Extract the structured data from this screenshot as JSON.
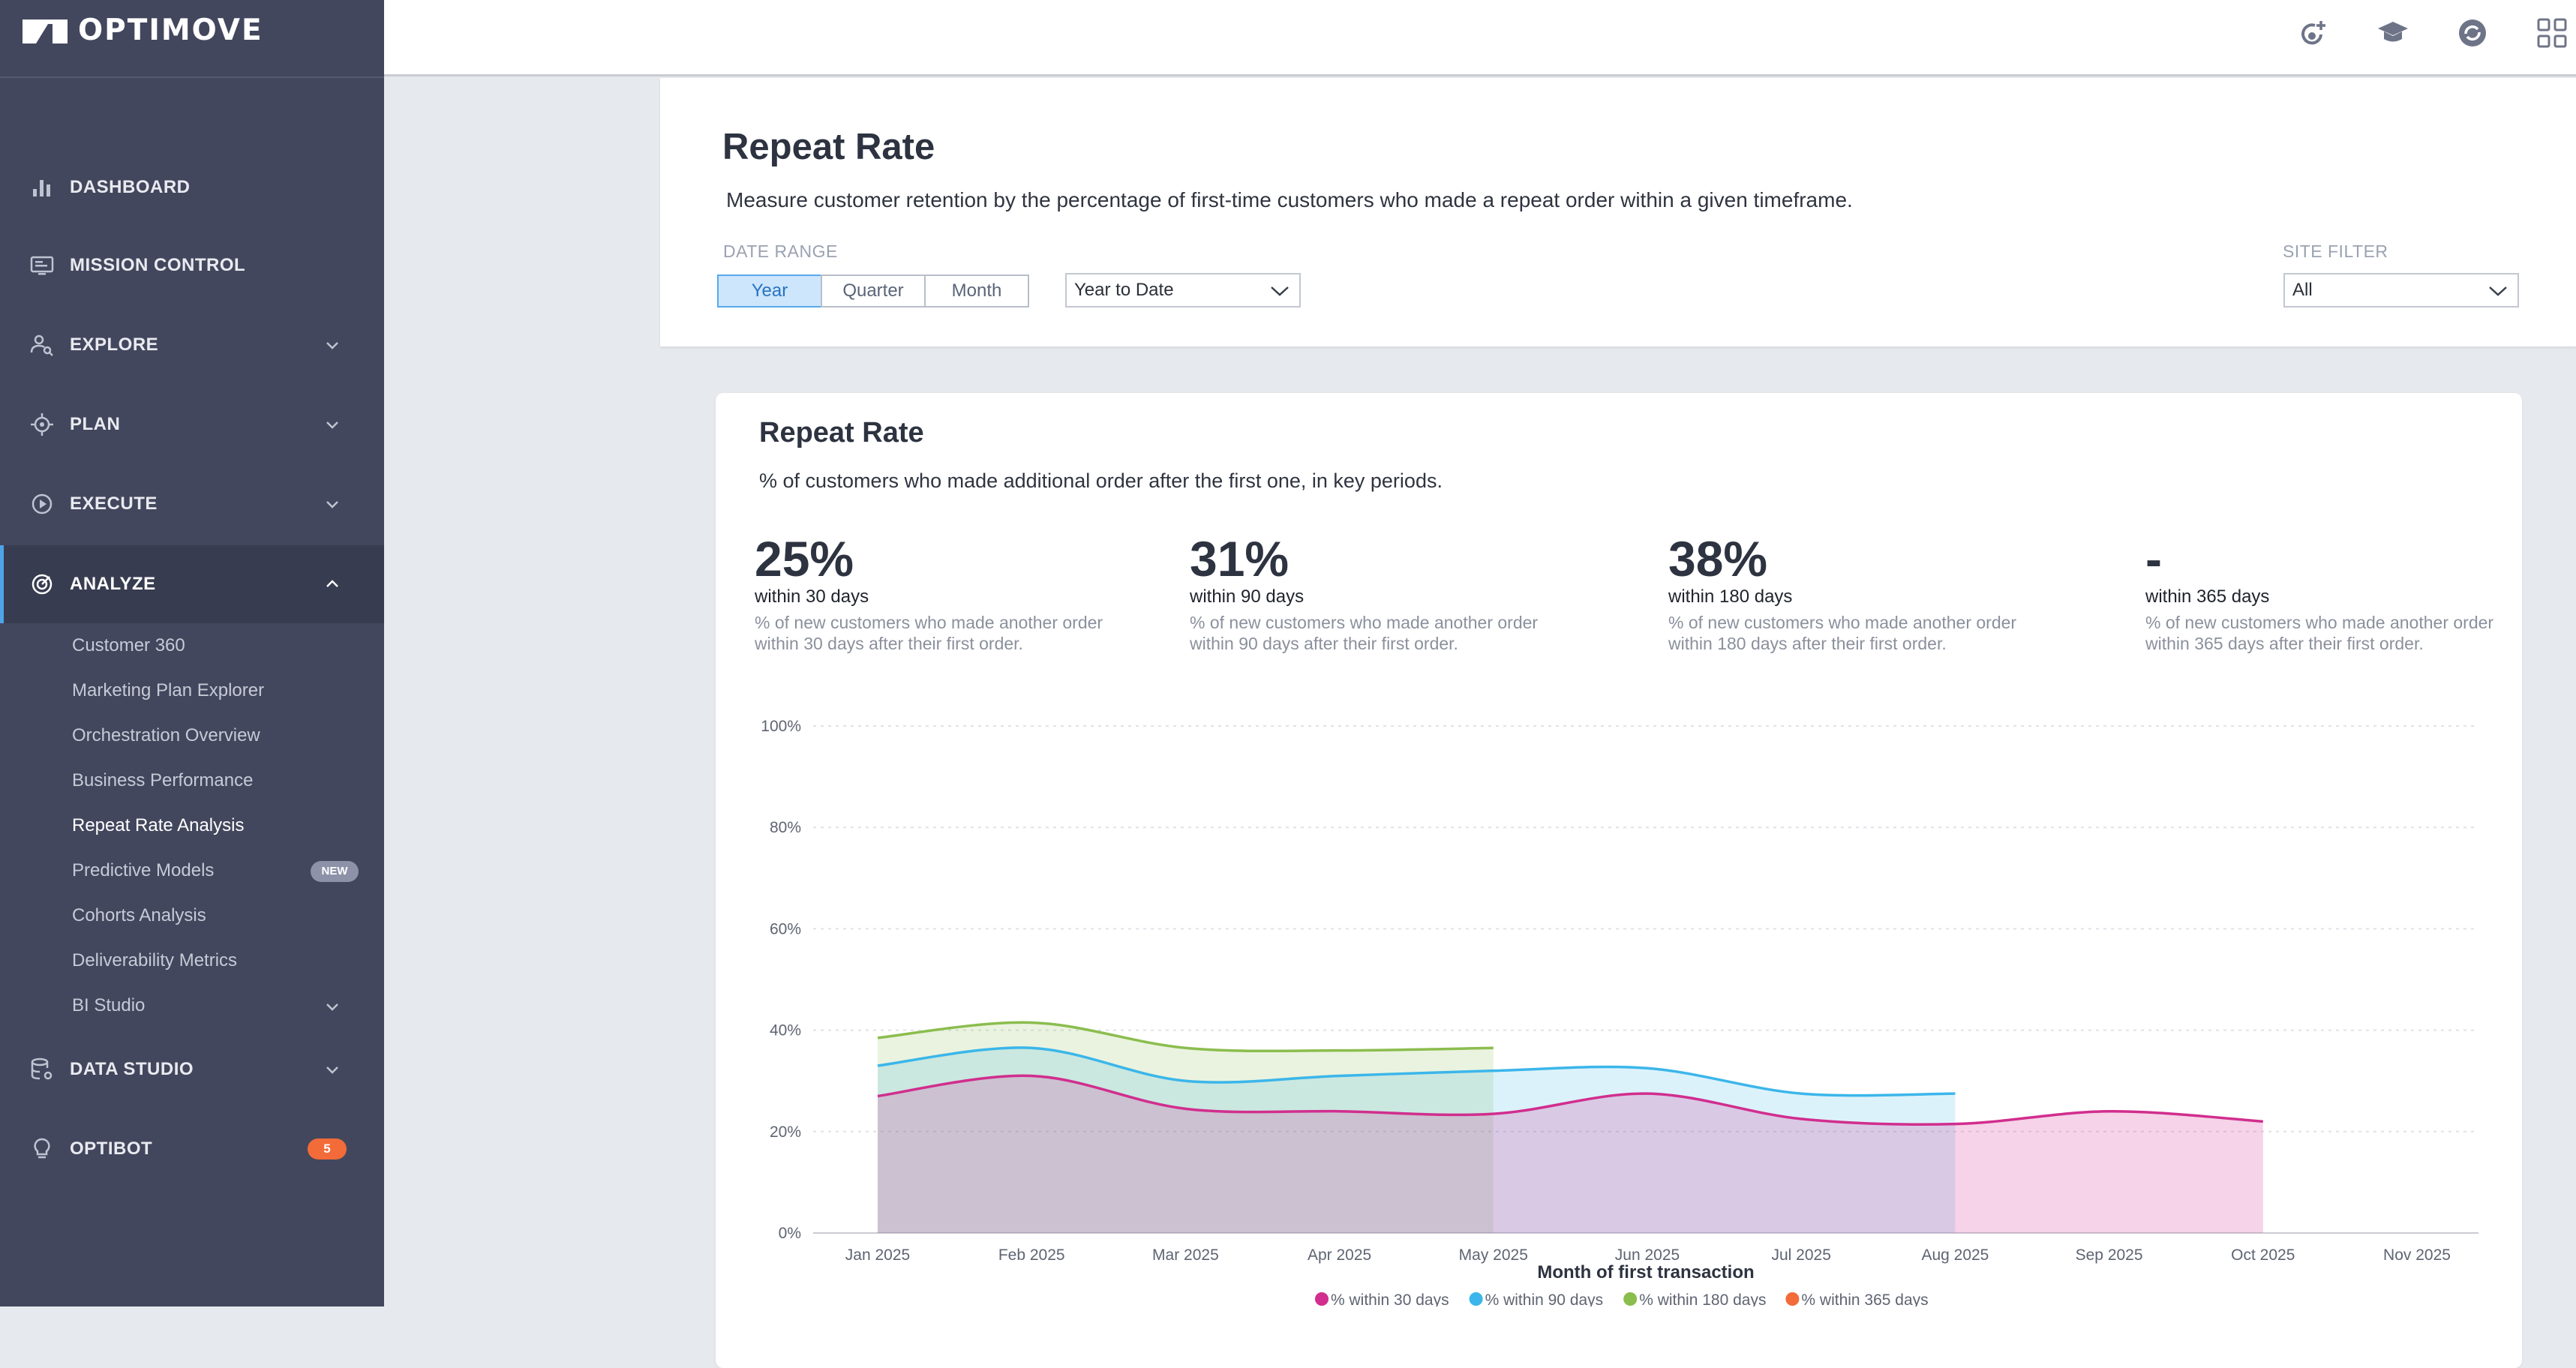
{
  "sidebar": {
    "logo": "OPTIMOVE",
    "items": [
      {
        "label": "DASHBOARD"
      },
      {
        "label": "MISSION CONTROL"
      },
      {
        "label": "EXPLORE"
      },
      {
        "label": "PLAN"
      },
      {
        "label": "EXECUTE"
      },
      {
        "label": "ANALYZE"
      },
      {
        "label": "DATA STUDIO"
      },
      {
        "label": "OPTIBOT"
      }
    ],
    "analyze_sub": [
      "Customer 360",
      "Marketing Plan Explorer",
      "Orchestration Overview",
      "Business Performance",
      "Repeat Rate Analysis",
      "Predictive Models",
      "Cohorts Analysis",
      "Deliverability Metrics",
      "BI Studio"
    ],
    "new_badge": "NEW",
    "optibot_count": "5"
  },
  "header": {
    "title": "Repeat Rate",
    "subtitle": "Measure customer retention by the percentage of first-time customers who made a repeat order within a given timeframe.",
    "date_range_label": "DATE RANGE",
    "segments": [
      "Year",
      "Quarter",
      "Month"
    ],
    "period_select": "Year to Date",
    "site_filter_label": "SITE FILTER",
    "site_filter_value": "All"
  },
  "card": {
    "title": "Repeat Rate",
    "subtitle": "% of customers who made additional order after the first one, in key periods.",
    "kpis": [
      {
        "value": "25%",
        "label": "within 30 days",
        "desc": "% of new customers who made another order within 30 days after their first order."
      },
      {
        "value": "31%",
        "label": "within 90 days",
        "desc": "% of new customers who made another order within 90 days after their first order."
      },
      {
        "value": "38%",
        "label": "within 180 days",
        "desc": "% of new customers who made another order within 180 days after their first order."
      },
      {
        "value": "-",
        "label": "within 365 days",
        "desc": "% of new customers who made another order within 365 days after their first order."
      }
    ]
  },
  "colors": {
    "sidebar": "#43475d",
    "accent": "#4ea4e8",
    "series_30": "#d12e8e",
    "series_90": "#3bb6ea",
    "series_180": "#8bbd4e",
    "series_365": "#f26b38"
  },
  "chart_data": {
    "type": "area",
    "xlabel": "Month of first transaction",
    "ylabel": "",
    "x": [
      "Jan 2025",
      "Feb 2025",
      "Mar 2025",
      "Apr 2025",
      "May 2025",
      "Jun 2025",
      "Jul 2025",
      "Aug 2025",
      "Sep 2025",
      "Oct 2025",
      "Nov 2025"
    ],
    "yticks": [
      "100%",
      "80%",
      "60%",
      "40%",
      "20%",
      "0%"
    ],
    "ylim": [
      0,
      100
    ],
    "grid": true,
    "legend_position": "bottom",
    "series": [
      {
        "name": "% within 30 days",
        "values": [
          27,
          31,
          24.5,
          24,
          23.5,
          27.5,
          22.5,
          21.5,
          24,
          22,
          null
        ]
      },
      {
        "name": "% within 90 days",
        "values": [
          33,
          36.5,
          30,
          31,
          32,
          32.5,
          27.5,
          27.5,
          null,
          null,
          null
        ]
      },
      {
        "name": "% within 180 days",
        "values": [
          38.5,
          41.5,
          36.5,
          36,
          36.5,
          null,
          null,
          null,
          null,
          null,
          null
        ]
      },
      {
        "name": "% within 365 days",
        "values": [
          null,
          null,
          null,
          null,
          null,
          null,
          null,
          null,
          null,
          null,
          null
        ]
      }
    ]
  }
}
